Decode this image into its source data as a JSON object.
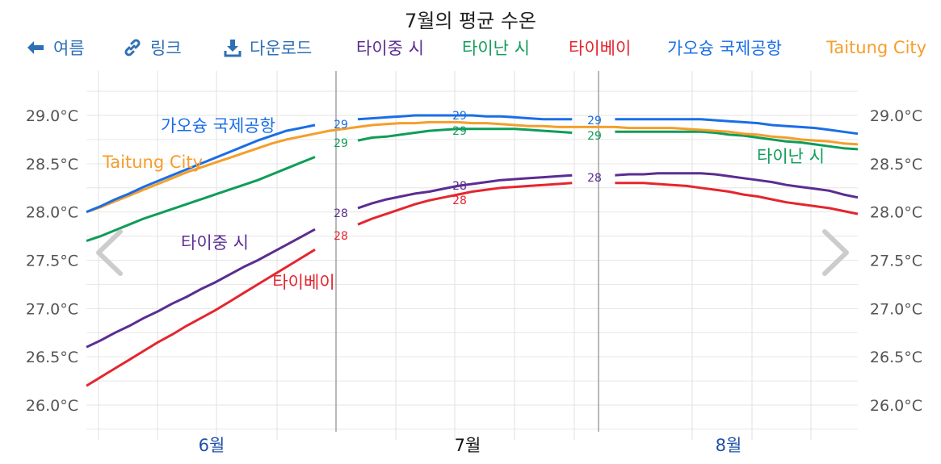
{
  "title": "7월의 평균 수온",
  "toolbar": {
    "summer_label": "여름",
    "link_label": "링크",
    "download_label": "다운로드"
  },
  "icons": {
    "summer": "arrow-left-icon",
    "link": "link-icon",
    "download": "download-icon",
    "prev": "chevron-left-icon",
    "next": "chevron-right-icon"
  },
  "chart_data": {
    "type": "line",
    "title": "7월의 평균 수온",
    "xlabel": "",
    "ylabel": "",
    "x_ticks": [
      "6월",
      "7월",
      "8월"
    ],
    "y_ticks": [
      "26.0°C",
      "26.5°C",
      "27.0°C",
      "27.5°C",
      "28.0°C",
      "28.5°C",
      "29.0°C"
    ],
    "ylim": [
      25.7,
      29.5
    ],
    "grid": true,
    "legend_position": "top",
    "series": [
      {
        "name": "타이중 시",
        "color": "#5b2d91",
        "values": [
          26.6,
          26.67,
          26.75,
          26.82,
          26.9,
          26.97,
          27.05,
          27.12,
          27.2,
          27.27,
          27.35,
          27.43,
          27.5,
          27.58,
          27.66,
          27.74,
          27.82,
          27.9,
          27.98,
          28.04,
          28.09,
          28.13,
          28.16,
          28.19,
          28.21,
          28.24,
          28.27,
          28.29,
          28.31,
          28.33,
          28.34,
          28.35,
          28.36,
          28.37,
          28.38,
          28.38,
          28.38,
          28.38,
          28.39,
          28.39,
          28.4,
          28.4,
          28.4,
          28.4,
          28.39,
          28.37,
          28.35,
          28.33,
          28.31,
          28.28,
          28.26,
          28.24,
          28.22,
          28.18,
          28.15
        ],
        "start_label": "28",
        "mid_label": "28",
        "end_label": "28",
        "name_label": "타이중 시"
      },
      {
        "name": "타이난 시",
        "color": "#0f9d58",
        "values": [
          27.7,
          27.75,
          27.81,
          27.87,
          27.93,
          27.98,
          28.03,
          28.08,
          28.13,
          28.18,
          28.23,
          28.28,
          28.33,
          28.39,
          28.45,
          28.51,
          28.57,
          28.63,
          28.69,
          28.74,
          28.77,
          28.78,
          28.8,
          28.82,
          28.84,
          28.85,
          28.86,
          28.86,
          28.86,
          28.86,
          28.86,
          28.85,
          28.84,
          28.83,
          28.82,
          28.82,
          28.83,
          28.83,
          28.83,
          28.83,
          28.83,
          28.83,
          28.83,
          28.83,
          28.82,
          28.8,
          28.79,
          28.77,
          28.75,
          28.73,
          28.72,
          28.7,
          28.68,
          28.66,
          28.65
        ],
        "start_label": "29",
        "mid_label": "29",
        "end_label": "29",
        "name_label": "타이난 시"
      },
      {
        "name": "타이베이",
        "color": "#e4262f",
        "values": [
          26.2,
          26.29,
          26.38,
          26.47,
          26.56,
          26.65,
          26.73,
          26.82,
          26.9,
          26.98,
          27.07,
          27.16,
          27.25,
          27.34,
          27.43,
          27.52,
          27.61,
          27.7,
          27.79,
          27.87,
          27.93,
          27.98,
          28.03,
          28.08,
          28.12,
          28.15,
          28.18,
          28.21,
          28.23,
          28.25,
          28.26,
          28.27,
          28.28,
          28.29,
          28.3,
          28.3,
          28.3,
          28.3,
          28.3,
          28.3,
          28.29,
          28.28,
          28.27,
          28.25,
          28.23,
          28.21,
          28.18,
          28.16,
          28.13,
          28.1,
          28.08,
          28.06,
          28.04,
          28.01,
          27.98
        ],
        "start_label": "28",
        "mid_label": "28",
        "end_label": "28",
        "name_label": "타이베이"
      },
      {
        "name": "가오슝 국제공항",
        "color": "#1a6ee6",
        "values": [
          28.0,
          28.06,
          28.13,
          28.19,
          28.26,
          28.32,
          28.38,
          28.44,
          28.5,
          28.56,
          28.62,
          28.68,
          28.74,
          28.79,
          28.84,
          28.87,
          28.9,
          28.92,
          28.94,
          28.96,
          28.97,
          28.98,
          28.99,
          29.0,
          29.0,
          29.0,
          29.0,
          29.0,
          28.99,
          28.99,
          28.98,
          28.97,
          28.96,
          28.96,
          28.96,
          28.96,
          28.96,
          28.96,
          28.96,
          28.96,
          28.96,
          28.96,
          28.96,
          28.96,
          28.95,
          28.94,
          28.93,
          28.92,
          28.9,
          28.89,
          28.88,
          28.87,
          28.85,
          28.83,
          28.81
        ],
        "start_label": "29",
        "mid_label": "29",
        "end_label": "29",
        "name_label": "가오슝 국제공항"
      },
      {
        "name": "Taitung City",
        "color": "#f59e2b",
        "values": [
          28.0,
          28.05,
          28.11,
          28.17,
          28.23,
          28.29,
          28.35,
          28.41,
          28.46,
          28.51,
          28.56,
          28.61,
          28.66,
          28.71,
          28.75,
          28.78,
          28.81,
          28.84,
          28.86,
          28.88,
          28.9,
          28.91,
          28.92,
          28.92,
          28.93,
          28.93,
          28.93,
          28.92,
          28.92,
          28.91,
          28.9,
          28.89,
          28.89,
          28.88,
          28.88,
          28.88,
          28.88,
          28.88,
          28.87,
          28.87,
          28.87,
          28.87,
          28.86,
          28.85,
          28.84,
          28.83,
          28.81,
          28.8,
          28.78,
          28.77,
          28.75,
          28.74,
          28.73,
          28.71,
          28.7
        ],
        "name_label": "Taitung City"
      }
    ]
  }
}
